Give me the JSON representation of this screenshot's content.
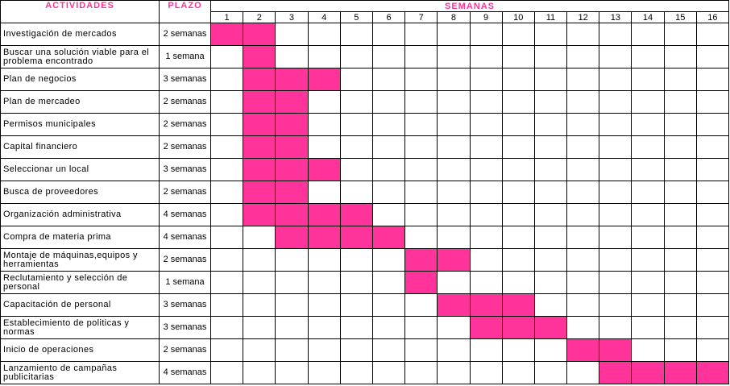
{
  "header": {
    "activities": "ACTIVIDADES",
    "plazo": "PLAZO",
    "semanas": "SEMANAS"
  },
  "weeks": [
    "1",
    "2",
    "3",
    "4",
    "5",
    "6",
    "7",
    "8",
    "9",
    "10",
    "11",
    "12",
    "13",
    "14",
    "15",
    "16"
  ],
  "colors": {
    "accent": "#ff3399",
    "grid": "#000000"
  },
  "rows": [
    {
      "activity": "Investigación de mercados",
      "plazo": "2 semanas",
      "start": 1,
      "end": 2
    },
    {
      "activity": "Buscar una solución viable para el problema encontrado",
      "plazo": "1 semana",
      "start": 2,
      "end": 2
    },
    {
      "activity": "Plan de negocios",
      "plazo": "3 semanas",
      "start": 2,
      "end": 4
    },
    {
      "activity": "Plan de mercadeo",
      "plazo": "2 semanas",
      "start": 2,
      "end": 3
    },
    {
      "activity": "Permisos municipales",
      "plazo": "2 semanas",
      "start": 2,
      "end": 3
    },
    {
      "activity": "Capital financiero",
      "plazo": "2 semanas",
      "start": 2,
      "end": 3
    },
    {
      "activity": "Seleccionar un local",
      "plazo": "3 semanas",
      "start": 2,
      "end": 4
    },
    {
      "activity": "Busca de proveedores",
      "plazo": "2 semanas",
      "start": 2,
      "end": 3
    },
    {
      "activity": "Organización administrativa",
      "plazo": "4 semanas",
      "start": 2,
      "end": 5
    },
    {
      "activity": "Compra de materia prima",
      "plazo": "4 semanas",
      "start": 3,
      "end": 6
    },
    {
      "activity": "Montaje de máquinas,equipos y herramientas",
      "plazo": "2 semanas",
      "start": 7,
      "end": 8
    },
    {
      "activity": "Reclutamiento y selección de personal",
      "plazo": "1 semana",
      "start": 7,
      "end": 7
    },
    {
      "activity": "Capacitación de personal",
      "plazo": "3 semanas",
      "start": 8,
      "end": 10
    },
    {
      "activity": "Establecimiento de politicas y normas",
      "plazo": "3 semanas",
      "start": 9,
      "end": 11
    },
    {
      "activity": "Inicio de operaciones",
      "plazo": "2 semanas",
      "start": 12,
      "end": 13
    },
    {
      "activity": "Lanzamiento de campañas publicitarias",
      "plazo": "4 semanas",
      "start": 13,
      "end": 16
    }
  ]
}
